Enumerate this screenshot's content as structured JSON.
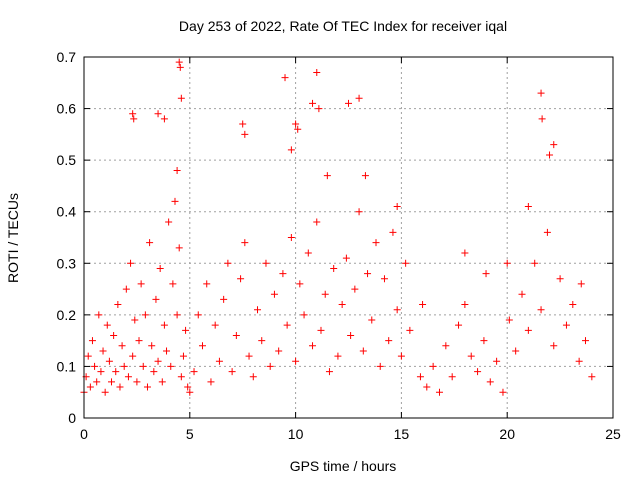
{
  "chart_data": {
    "type": "scatter",
    "title": "Day 253 of 2022, Rate Of TEC Index for receiver iqal",
    "xlabel": "GPS time / hours",
    "ylabel": "ROTI / TECUs",
    "xlim": [
      0,
      25
    ],
    "ylim": [
      0,
      0.7
    ],
    "x_ticks": [
      "0",
      "5",
      "10",
      "15",
      "20",
      "25"
    ],
    "y_ticks": [
      "0",
      "0.1",
      "0.2",
      "0.3",
      "0.4",
      "0.5",
      "0.6",
      "0.7"
    ],
    "grid": true,
    "legend": "none",
    "marker": "+",
    "color": "#ff0000",
    "series": [
      {
        "x": [
          0.0,
          0.1,
          0.2,
          0.3,
          0.4,
          0.5,
          0.6,
          0.7,
          0.8,
          0.9,
          1.0,
          1.1,
          1.2,
          1.3,
          1.4,
          1.5,
          1.6,
          1.7,
          1.8,
          1.9,
          2.0,
          2.1,
          2.2,
          2.3,
          2.4,
          2.5,
          2.6,
          2.7,
          2.8,
          2.9,
          3.0,
          3.1,
          3.2,
          3.3,
          3.4,
          3.5,
          3.6,
          3.7,
          3.8,
          3.9,
          4.0,
          4.1,
          4.2,
          4.3,
          4.4,
          4.5,
          4.6,
          4.7,
          4.8,
          4.9,
          5.0,
          5.2,
          5.4,
          5.6,
          5.8,
          6.0,
          6.2,
          6.4,
          6.6,
          6.8,
          7.0,
          7.2,
          7.4,
          7.6,
          7.8,
          8.0,
          8.2,
          8.4,
          8.6,
          8.8,
          9.0,
          9.2,
          9.4,
          9.6,
          9.8,
          10.0,
          10.2,
          10.4,
          10.6,
          10.8,
          11.0,
          11.2,
          11.4,
          11.6,
          11.8,
          12.0,
          12.2,
          12.4,
          12.6,
          12.8,
          13.0,
          13.2,
          13.4,
          13.6,
          13.8,
          14.0,
          14.2,
          14.4,
          14.6,
          14.8,
          15.0,
          15.2,
          15.4,
          15.9,
          16.2,
          16.5,
          16.8,
          17.1,
          17.4,
          17.7,
          18.0,
          18.3,
          18.6,
          18.9,
          19.2,
          19.5,
          19.8,
          20.1,
          20.4,
          20.7,
          21.0,
          21.3,
          21.6,
          21.9,
          22.2,
          22.5,
          22.8,
          23.1,
          23.4,
          23.7,
          24.0,
          2.3,
          2.35,
          4.5,
          4.55,
          4.6,
          10.0,
          10.1,
          11.0,
          11.1,
          13.0,
          7.5,
          7.6,
          21.6,
          21.65,
          22.2,
          3.5,
          3.8,
          4.4,
          9.5,
          9.8,
          10.8,
          11.5,
          12.5,
          13.3,
          14.8,
          16.0,
          18.0,
          19.0,
          20.0,
          21.0,
          22.0,
          23.5
        ],
        "y": [
          0.05,
          0.08,
          0.12,
          0.06,
          0.15,
          0.1,
          0.07,
          0.2,
          0.09,
          0.13,
          0.05,
          0.18,
          0.11,
          0.07,
          0.16,
          0.09,
          0.22,
          0.06,
          0.14,
          0.1,
          0.25,
          0.08,
          0.3,
          0.12,
          0.19,
          0.07,
          0.15,
          0.26,
          0.1,
          0.2,
          0.06,
          0.34,
          0.14,
          0.09,
          0.23,
          0.11,
          0.29,
          0.07,
          0.18,
          0.13,
          0.38,
          0.1,
          0.26,
          0.42,
          0.2,
          0.33,
          0.08,
          0.12,
          0.17,
          0.06,
          0.05,
          0.09,
          0.2,
          0.14,
          0.26,
          0.07,
          0.18,
          0.11,
          0.23,
          0.3,
          0.09,
          0.16,
          0.27,
          0.34,
          0.12,
          0.08,
          0.21,
          0.15,
          0.3,
          0.1,
          0.24,
          0.13,
          0.28,
          0.18,
          0.35,
          0.11,
          0.26,
          0.2,
          0.32,
          0.14,
          0.38,
          0.17,
          0.24,
          0.09,
          0.29,
          0.12,
          0.22,
          0.31,
          0.16,
          0.25,
          0.4,
          0.13,
          0.28,
          0.19,
          0.34,
          0.1,
          0.27,
          0.15,
          0.36,
          0.21,
          0.12,
          0.3,
          0.17,
          0.08,
          0.06,
          0.1,
          0.05,
          0.14,
          0.08,
          0.18,
          0.22,
          0.12,
          0.09,
          0.15,
          0.07,
          0.11,
          0.05,
          0.19,
          0.13,
          0.24,
          0.17,
          0.3,
          0.21,
          0.36,
          0.14,
          0.27,
          0.18,
          0.22,
          0.11,
          0.15,
          0.08,
          0.59,
          0.58,
          0.69,
          0.68,
          0.62,
          0.57,
          0.56,
          0.67,
          0.6,
          0.62,
          0.57,
          0.55,
          0.63,
          0.58,
          0.53,
          0.59,
          0.58,
          0.48,
          0.66,
          0.52,
          0.61,
          0.47,
          0.61,
          0.47,
          0.41,
          0.22,
          0.32,
          0.28,
          0.3,
          0.41,
          0.51,
          0.26
        ]
      }
    ]
  }
}
